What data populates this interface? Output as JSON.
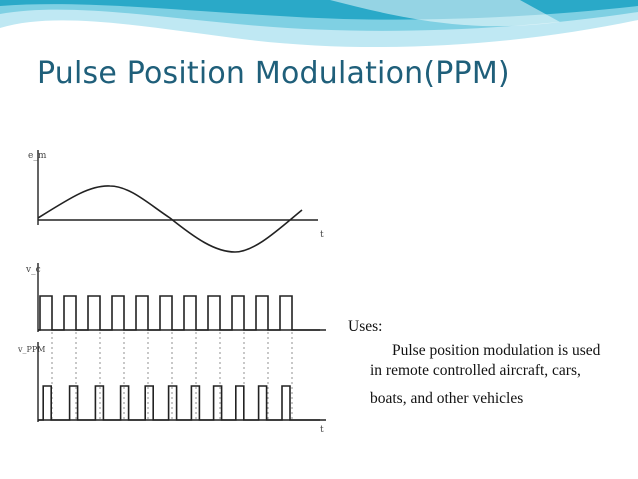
{
  "slide": {
    "title": "Pulse Position Modulation(PPM)",
    "uses_label": "Uses:",
    "uses_text": "Pulse position modulation is used in remote controlled aircraft, cars,",
    "uses_extra": "boats, and other vehicles"
  },
  "diagram": {
    "label_top": "e_m",
    "label_mid": "v_c",
    "label_bot": "v_PPM",
    "axis_t": "t"
  },
  "colors": {
    "title": "#1f5f7a",
    "header_teal": "#2aa9c8",
    "header_light": "#bfe8f3"
  }
}
